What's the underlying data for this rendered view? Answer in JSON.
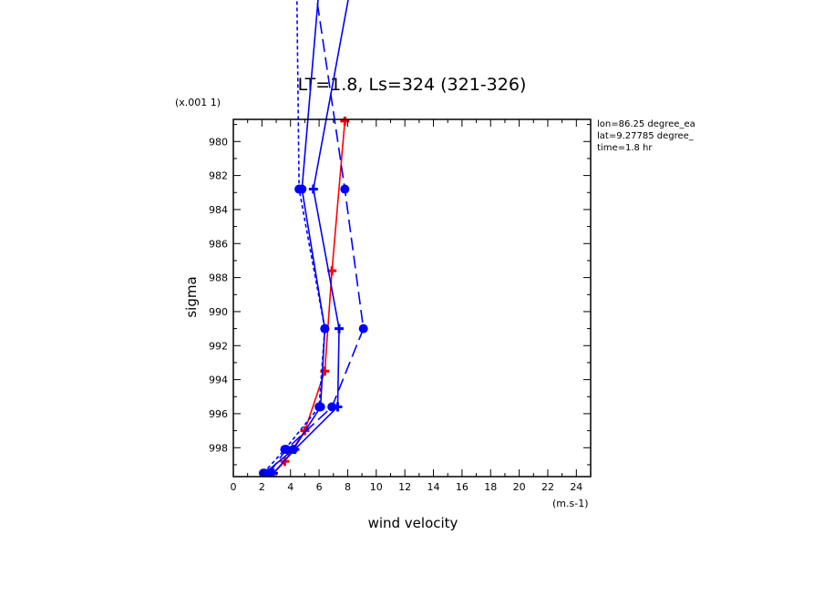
{
  "chart_data": {
    "type": "line",
    "title": "LT=1.8, Ls=324 (321-326)",
    "xlabel": "wind velocity",
    "ylabel": "sigma",
    "x_scale_label": "(m.s-1)",
    "y_scale_label": "(x.001 1)",
    "xlim": [
      0,
      25
    ],
    "ylim": [
      999.7,
      978.7
    ],
    "x_ticks": [
      0,
      2,
      4,
      6,
      8,
      10,
      12,
      14,
      16,
      18,
      20,
      22,
      24
    ],
    "x_tick_labels": [
      "0",
      "2",
      "4",
      "6",
      "8",
      "10",
      "12",
      "14",
      "16",
      "18",
      "20",
      "22",
      "24"
    ],
    "y_ticks": [
      980,
      982,
      984,
      986,
      988,
      990,
      992,
      994,
      996,
      998
    ],
    "y_tick_labels": [
      "980",
      "982",
      "984",
      "986",
      "988",
      "990",
      "992",
      "994",
      "996",
      "998"
    ],
    "grid": false,
    "annotations": [
      "lon=86.25 degree_ea",
      "lat=9.27785 degree_",
      "time=1.8 hr"
    ],
    "series": [
      {
        "color": "#ff0000",
        "dash": "solid",
        "marker": "plus",
        "points": [
          [
            2.6,
            999.7
          ],
          [
            3.6,
            998.8
          ],
          [
            5.0,
            997.0
          ],
          [
            6.4,
            993.5
          ],
          [
            6.9,
            987.6
          ],
          [
            7.8,
            978.8
          ]
        ],
        "markers": [
          [
            2.6,
            999.7
          ],
          [
            3.6,
            998.8
          ],
          [
            5.0,
            997.0
          ],
          [
            6.4,
            993.5
          ],
          [
            6.9,
            987.6
          ],
          [
            7.8,
            978.8
          ]
        ]
      },
      {
        "color": "#0000ff",
        "dash": "solid",
        "marker": "circle",
        "points": [
          [
            2.2,
            999.5
          ],
          [
            4.2,
            998.1
          ],
          [
            6.1,
            995.6
          ],
          [
            6.4,
            991.0
          ],
          [
            4.8,
            982.8
          ],
          [
            6.3,
            968.0
          ]
        ],
        "markers": [
          [
            2.2,
            999.5
          ],
          [
            4.2,
            998.1
          ],
          [
            6.1,
            995.6
          ],
          [
            6.4,
            991.0
          ],
          [
            4.8,
            982.8
          ]
        ]
      },
      {
        "color": "#0000ff",
        "dash": "solid",
        "marker": "plus",
        "points": [
          [
            2.8,
            999.5
          ],
          [
            4.3,
            998.1
          ],
          [
            7.3,
            995.6
          ],
          [
            7.4,
            991.0
          ],
          [
            5.6,
            982.8
          ],
          [
            8.4,
            970.0
          ]
        ],
        "markers": [
          [
            2.8,
            999.5
          ],
          [
            4.3,
            998.1
          ],
          [
            7.3,
            995.6
          ],
          [
            7.4,
            991.0
          ],
          [
            5.6,
            982.8
          ]
        ]
      },
      {
        "color": "#0000ff",
        "dash": "long",
        "marker": "circle",
        "points": [
          [
            2.5,
            999.5
          ],
          [
            3.7,
            998.1
          ],
          [
            6.9,
            995.6
          ],
          [
            9.1,
            991.0
          ],
          [
            7.8,
            982.8
          ],
          [
            5.2,
            968.0
          ]
        ],
        "markers": [
          [
            2.5,
            999.5
          ],
          [
            3.7,
            998.1
          ],
          [
            6.9,
            995.6
          ],
          [
            9.1,
            991.0
          ],
          [
            7.8,
            982.8
          ]
        ]
      },
      {
        "color": "#0000ff",
        "dash": "short",
        "marker": "circle",
        "points": [
          [
            2.1,
            999.5
          ],
          [
            3.6,
            998.1
          ],
          [
            6.0,
            995.6
          ],
          [
            6.4,
            991.0
          ],
          [
            4.6,
            982.8
          ],
          [
            4.4,
            968.0
          ]
        ],
        "markers": [
          [
            2.1,
            999.5
          ],
          [
            3.6,
            998.1
          ],
          [
            6.0,
            995.6
          ],
          [
            6.4,
            991.0
          ],
          [
            4.6,
            982.8
          ]
        ]
      }
    ]
  }
}
